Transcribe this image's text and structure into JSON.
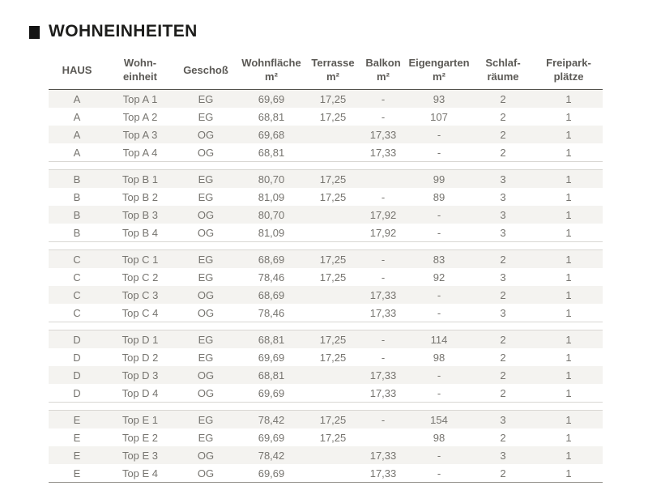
{
  "title": {
    "text": "WOHNEINHEITEN"
  },
  "colors": {
    "background": "#ffffff",
    "title_text": "#1d1d1b",
    "title_bullet": "#141414",
    "header_text": "#5b5955",
    "header_rule": "#54524d",
    "cell_text": "#76746f",
    "row_stripe": "#f4f3f0",
    "group_rule": "#d9d7d3",
    "table_bottom_rule": "#96948f"
  },
  "table": {
    "columns": [
      {
        "key": "haus",
        "line1": "HAUS",
        "line2": ""
      },
      {
        "key": "wohneinheit",
        "line1": "Wohn-",
        "line2": "einheit"
      },
      {
        "key": "geschoss",
        "line1": "Geschoß",
        "line2": ""
      },
      {
        "key": "wohnflaeche",
        "line1": "Wohnfläche",
        "line2": "m²"
      },
      {
        "key": "terrasse",
        "line1": "Terrasse",
        "line2": "m²"
      },
      {
        "key": "balkon",
        "line1": "Balkon",
        "line2": "m²"
      },
      {
        "key": "eigengarten",
        "line1": "Eigengarten",
        "line2": "m²"
      },
      {
        "key": "schlafraeume",
        "line1": "Schlaf-",
        "line2": "räume"
      },
      {
        "key": "freiparkplaetze",
        "line1": "Freipark-",
        "line2": "plätze"
      }
    ],
    "groups": [
      {
        "haus": "A",
        "rows": [
          [
            "A",
            "Top A 1",
            "EG",
            "69,69",
            "17,25",
            "-",
            "93",
            "2",
            "1"
          ],
          [
            "A",
            "Top A 2",
            "EG",
            "68,81",
            "17,25",
            "-",
            "107",
            "2",
            "1"
          ],
          [
            "A",
            "Top A 3",
            "OG",
            "69,68",
            "",
            "17,33",
            "-",
            "2",
            "1"
          ],
          [
            "A",
            "Top A 4",
            "OG",
            "68,81",
            "",
            "17,33",
            "-",
            "2",
            "1"
          ]
        ]
      },
      {
        "haus": "B",
        "rows": [
          [
            "B",
            "Top B 1",
            "EG",
            "80,70",
            "17,25",
            "",
            "99",
            "3",
            "1"
          ],
          [
            "B",
            "Top B 2",
            "EG",
            "81,09",
            "17,25",
            "-",
            "89",
            "3",
            "1"
          ],
          [
            "B",
            "Top B 3",
            "OG",
            "80,70",
            "",
            "17,92",
            "-",
            "3",
            "1"
          ],
          [
            "B",
            "Top B 4",
            "OG",
            "81,09",
            "",
            "17,92",
            "-",
            "3",
            "1"
          ]
        ]
      },
      {
        "haus": "C",
        "rows": [
          [
            "C",
            "Top C 1",
            "EG",
            "68,69",
            "17,25",
            "-",
            "83",
            "2",
            "1"
          ],
          [
            "C",
            "Top C 2",
            "EG",
            "78,46",
            "17,25",
            "-",
            "92",
            "3",
            "1"
          ],
          [
            "C",
            "Top C 3",
            "OG",
            "68,69",
            "",
            "17,33",
            "-",
            "2",
            "1"
          ],
          [
            "C",
            "Top C 4",
            "OG",
            "78,46",
            "",
            "17,33",
            "-",
            "3",
            "1"
          ]
        ]
      },
      {
        "haus": "D",
        "rows": [
          [
            "D",
            "Top D 1",
            "EG",
            "68,81",
            "17,25",
            "-",
            "114",
            "2",
            "1"
          ],
          [
            "D",
            "Top D 2",
            "EG",
            "69,69",
            "17,25",
            "-",
            "98",
            "2",
            "1"
          ],
          [
            "D",
            "Top D 3",
            "OG",
            "68,81",
            "",
            "17,33",
            "-",
            "2",
            "1"
          ],
          [
            "D",
            "Top D 4",
            "OG",
            "69,69",
            "",
            "17,33",
            "-",
            "2",
            "1"
          ]
        ]
      },
      {
        "haus": "E",
        "rows": [
          [
            "E",
            "Top E 1",
            "EG",
            "78,42",
            "17,25",
            "-",
            "154",
            "3",
            "1"
          ],
          [
            "E",
            "Top E 2",
            "EG",
            "69,69",
            "17,25",
            "",
            "98",
            "2",
            "1"
          ],
          [
            "E",
            "Top E 3",
            "OG",
            "78,42",
            "",
            "17,33",
            "-",
            "3",
            "1"
          ],
          [
            "E",
            "Top E 4",
            "OG",
            "69,69",
            "",
            "17,33",
            "-",
            "2",
            "1"
          ]
        ]
      }
    ]
  }
}
